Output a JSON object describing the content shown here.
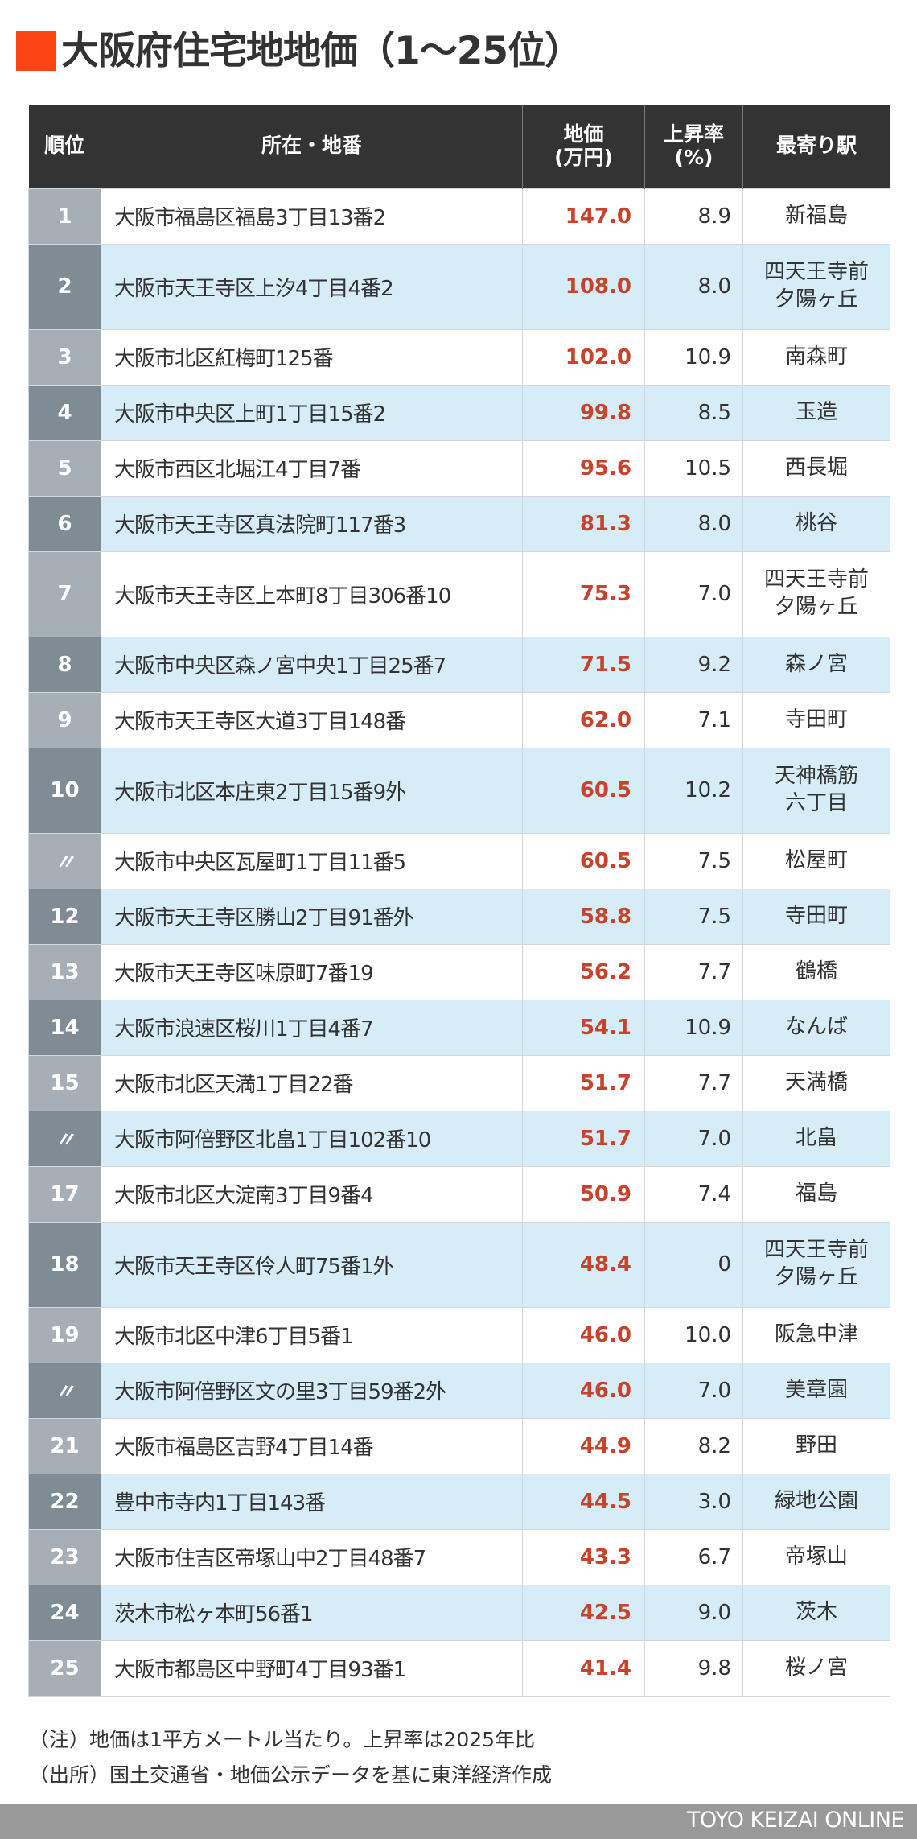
{
  "title": {
    "mark_color": "#fc4512",
    "text": "大阪府住宅地地価（1〜25位）"
  },
  "table": {
    "headers": {
      "rank": "順位",
      "address": "所在・地番",
      "price_line1": "地価",
      "price_line2": "(万円)",
      "rate_line1": "上昇率",
      "rate_line2": "(%)",
      "station": "最寄り駅"
    },
    "rows": [
      {
        "rank": "1",
        "address": "大阪市福島区福島3丁目13番2",
        "price": "147.0",
        "rate": "8.9",
        "station": "新福島"
      },
      {
        "rank": "2",
        "address": "大阪市天王寺区上汐4丁目4番2",
        "price": "108.0",
        "rate": "8.0",
        "station": "四天王寺前\n夕陽ヶ丘"
      },
      {
        "rank": "3",
        "address": "大阪市北区紅梅町125番",
        "price": "102.0",
        "rate": "10.9",
        "station": "南森町"
      },
      {
        "rank": "4",
        "address": "大阪市中央区上町1丁目15番2",
        "price": "99.8",
        "rate": "8.5",
        "station": "玉造"
      },
      {
        "rank": "5",
        "address": "大阪市西区北堀江4丁目7番",
        "price": "95.6",
        "rate": "10.5",
        "station": "西長堀"
      },
      {
        "rank": "6",
        "address": "大阪市天王寺区真法院町117番3",
        "price": "81.3",
        "rate": "8.0",
        "station": "桃谷"
      },
      {
        "rank": "7",
        "address": "大阪市天王寺区上本町8丁目306番10",
        "price": "75.3",
        "rate": "7.0",
        "station": "四天王寺前\n夕陽ヶ丘"
      },
      {
        "rank": "8",
        "address": "大阪市中央区森ノ宮中央1丁目25番7",
        "price": "71.5",
        "rate": "9.2",
        "station": "森ノ宮"
      },
      {
        "rank": "9",
        "address": "大阪市天王寺区大道3丁目148番",
        "price": "62.0",
        "rate": "7.1",
        "station": "寺田町"
      },
      {
        "rank": "10",
        "address": "大阪市北区本庄東2丁目15番9外",
        "price": "60.5",
        "rate": "10.2",
        "station": "天神橋筋\n六丁目"
      },
      {
        "rank": "〃",
        "address": "大阪市中央区瓦屋町1丁目11番5",
        "price": "60.5",
        "rate": "7.5",
        "station": "松屋町"
      },
      {
        "rank": "12",
        "address": "大阪市天王寺区勝山2丁目91番外",
        "price": "58.8",
        "rate": "7.5",
        "station": "寺田町"
      },
      {
        "rank": "13",
        "address": "大阪市天王寺区味原町7番19",
        "price": "56.2",
        "rate": "7.7",
        "station": "鶴橋"
      },
      {
        "rank": "14",
        "address": "大阪市浪速区桜川1丁目4番7",
        "price": "54.1",
        "rate": "10.9",
        "station": "なんば"
      },
      {
        "rank": "15",
        "address": "大阪市北区天満1丁目22番",
        "price": "51.7",
        "rate": "7.7",
        "station": "天満橋"
      },
      {
        "rank": "〃",
        "address": "大阪市阿倍野区北畠1丁目102番10",
        "price": "51.7",
        "rate": "7.0",
        "station": "北畠"
      },
      {
        "rank": "17",
        "address": "大阪市北区大淀南3丁目9番4",
        "price": "50.9",
        "rate": "7.4",
        "station": "福島"
      },
      {
        "rank": "18",
        "address": "大阪市天王寺区伶人町75番1外",
        "price": "48.4",
        "rate": "0",
        "station": "四天王寺前\n夕陽ヶ丘"
      },
      {
        "rank": "19",
        "address": "大阪市北区中津6丁目5番1",
        "price": "46.0",
        "rate": "10.0",
        "station": "阪急中津"
      },
      {
        "rank": "〃",
        "address": "大阪市阿倍野区文の里3丁目59番2外",
        "price": "46.0",
        "rate": "7.0",
        "station": "美章園"
      },
      {
        "rank": "21",
        "address": "大阪市福島区吉野4丁目14番",
        "price": "44.9",
        "rate": "8.2",
        "station": "野田"
      },
      {
        "rank": "22",
        "address": "豊中市寺内1丁目143番",
        "price": "44.5",
        "rate": "3.0",
        "station": "緑地公園"
      },
      {
        "rank": "23",
        "address": "大阪市住吉区帝塚山中2丁目48番7",
        "price": "43.3",
        "rate": "6.7",
        "station": "帝塚山"
      },
      {
        "rank": "24",
        "address": "茨木市松ヶ本町56番1",
        "price": "42.5",
        "rate": "9.0",
        "station": "茨木"
      },
      {
        "rank": "25",
        "address": "大阪市都島区中野町4丁目93番1",
        "price": "41.4",
        "rate": "9.8",
        "station": "桜ノ宮"
      }
    ]
  },
  "notes": {
    "note": "（注）地価は1平方メートル当たり。上昇率は2025年比",
    "source": "（出所）国土交通省・地価公示データを基に東洋経済作成"
  },
  "footer": {
    "brand": "TOYO KEIZAI ONLINE"
  },
  "colors": {
    "header_bg": "#333333",
    "rank_odd": "#a5afb5",
    "rank_even": "#7f8c93",
    "row_even_bg": "#d6ecf7",
    "price_text": "#c8432b",
    "footer_bg": "#999999"
  }
}
